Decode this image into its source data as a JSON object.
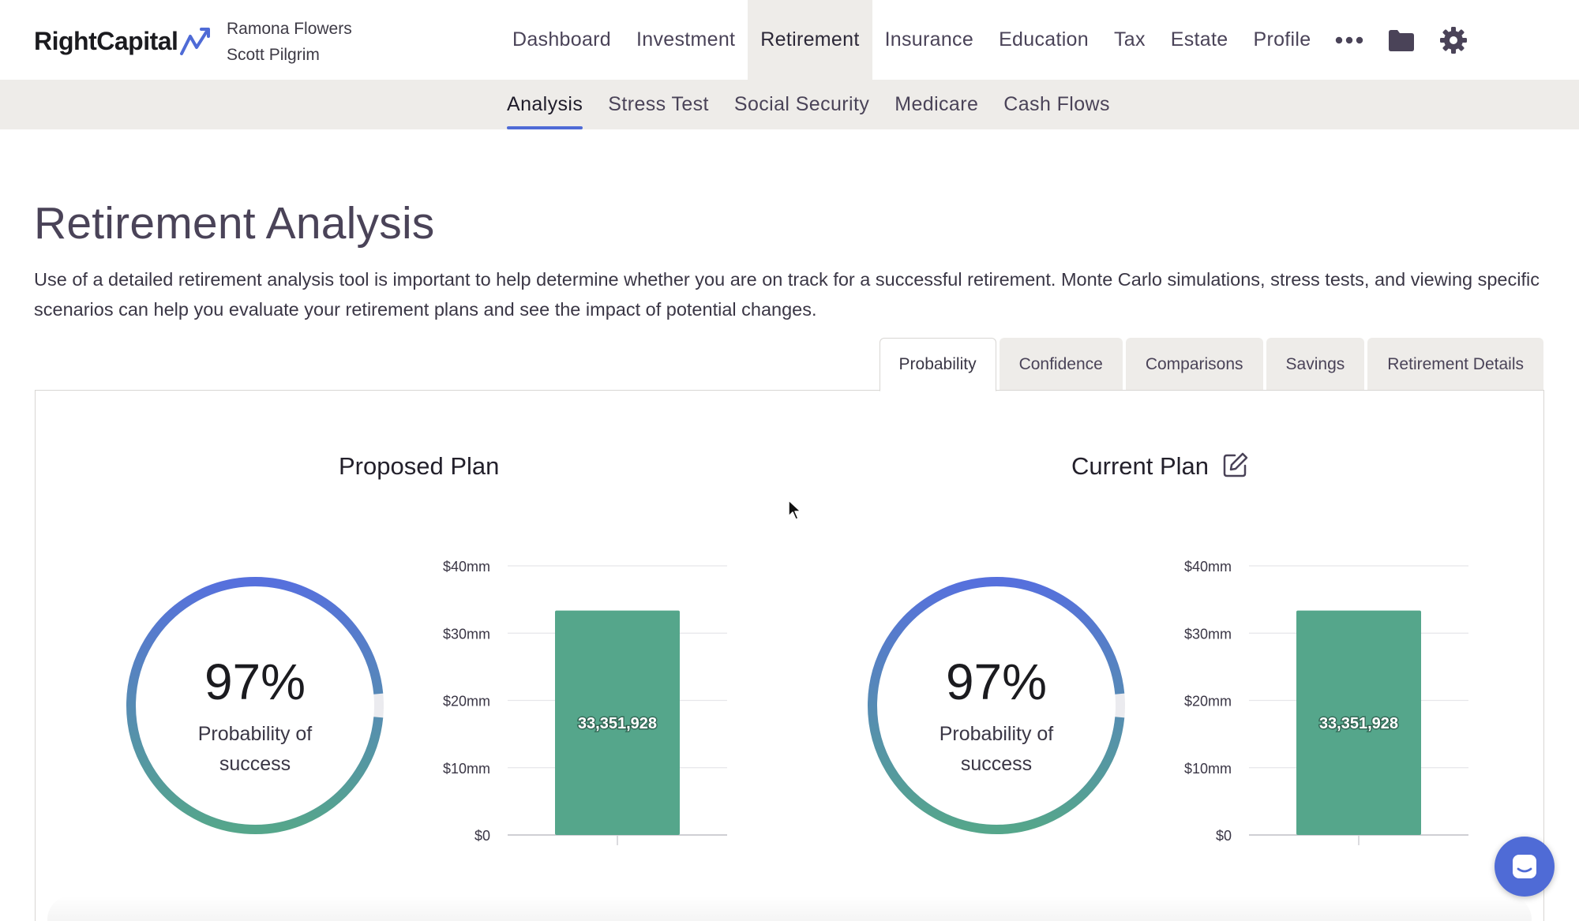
{
  "brand": {
    "name": "RightCapital",
    "accent": "#4f6bd6"
  },
  "clients": {
    "primary": "Ramona Flowers",
    "secondary": "Scott Pilgrim"
  },
  "nav": {
    "items": [
      "Dashboard",
      "Investment",
      "Retirement",
      "Insurance",
      "Education",
      "Tax",
      "Estate",
      "Profile"
    ],
    "active": "Retirement",
    "icons": [
      "more-icon",
      "folder-icon",
      "gear-icon"
    ]
  },
  "subnav": {
    "items": [
      "Analysis",
      "Stress Test",
      "Social Security",
      "Medicare",
      "Cash Flows"
    ],
    "active": "Analysis"
  },
  "page": {
    "title": "Retirement Analysis",
    "description": "Use of a detailed retirement analysis tool is important to help determine whether you are on track for a successful retirement. Monte Carlo simulations, stress tests, and viewing specific scenarios can help you evaluate your retirement plans and see the impact of potential changes."
  },
  "tabs": {
    "items": [
      "Probability",
      "Confidence",
      "Comparisons",
      "Savings",
      "Retirement Details"
    ],
    "active": "Probability"
  },
  "plans": {
    "proposed": {
      "title": "Proposed Plan",
      "probability": "97%",
      "probability_value": 0.97,
      "probability_label": "Probability of success"
    },
    "current": {
      "title": "Current Plan",
      "probability": "97%",
      "probability_value": 0.97,
      "probability_label": "Probability of success"
    }
  },
  "chart_data": [
    {
      "type": "bar",
      "categories": [
        ""
      ],
      "values": [
        33351928
      ],
      "data_labels": [
        "33,351,928"
      ],
      "yticks": [
        "$0",
        "$10mm",
        "$20mm",
        "$30mm",
        "$40mm"
      ],
      "ylim": [
        0,
        40000000
      ],
      "grid": true,
      "bar_color": "#55a68b"
    },
    {
      "type": "bar",
      "categories": [
        ""
      ],
      "values": [
        33351928
      ],
      "data_labels": [
        "33,351,928"
      ],
      "yticks": [
        "$0",
        "$10mm",
        "$20mm",
        "$30mm",
        "$40mm"
      ],
      "ylim": [
        0,
        40000000
      ],
      "grid": true,
      "bar_color": "#55a68b"
    }
  ]
}
